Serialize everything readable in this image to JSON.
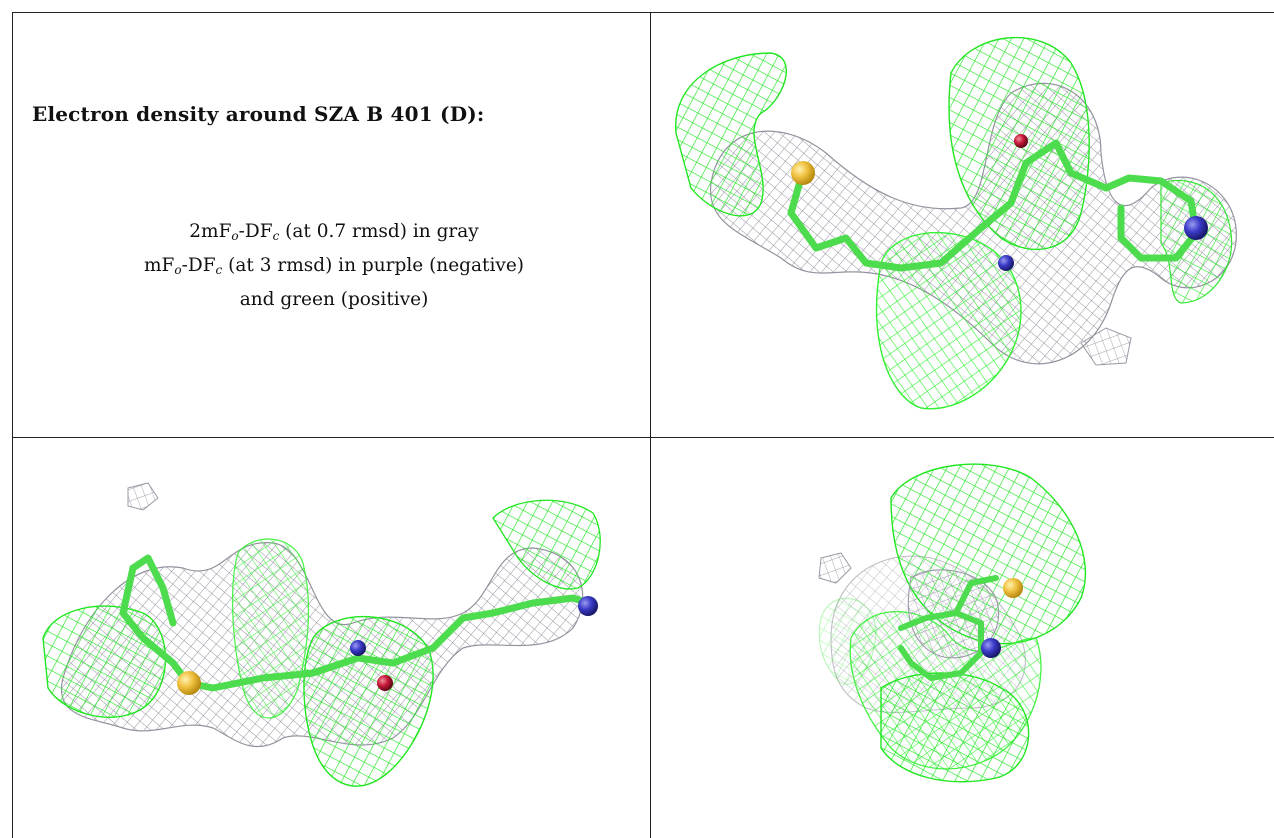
{
  "title": "Electron density around SZA B 401 (D):",
  "legend": {
    "line1": {
      "pre": "2mF",
      "sub1": "o",
      "mid": "-DF",
      "sub2": "c",
      "post": " (at 0.7 rmsd) in gray"
    },
    "line2": {
      "pre": "mF",
      "sub1": "o",
      "mid": "-DF",
      "sub2": "c",
      "post": " (at 3 rmsd) in purple (negative)"
    },
    "line3": "and green (positive)"
  },
  "colors": {
    "positive_density": "#33ee33",
    "map_2fofc": "#9a9aa6",
    "carbon": "#4ddc4d",
    "sulfur": "#f0c040",
    "nitrogen": "#3a3ac8",
    "oxygen": "#d02040"
  },
  "panels": [
    "view-top-right",
    "view-bottom-left",
    "view-bottom-right"
  ]
}
